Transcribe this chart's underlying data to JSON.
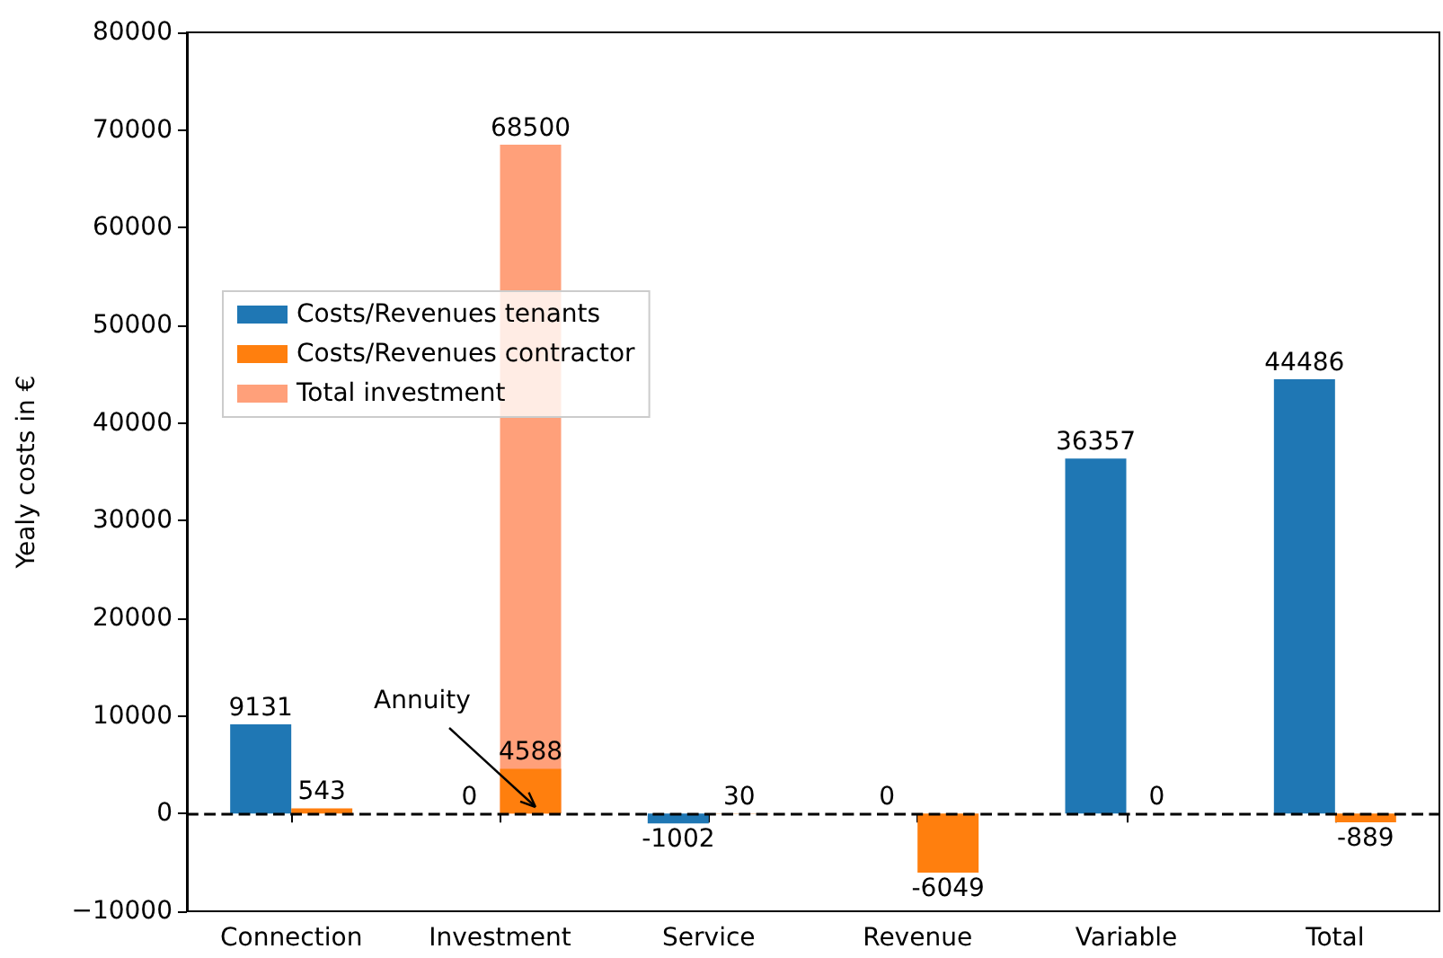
{
  "chart_data": {
    "type": "bar",
    "ylabel": "Yealy costs in €",
    "categories": [
      "Connection",
      "Investment",
      "Service",
      "Revenue",
      "Variable",
      "Total"
    ],
    "series": [
      {
        "name": "Costs/Revenues tenants",
        "color": "#1f77b4",
        "values": [
          9131,
          0,
          -1002,
          0,
          36357,
          44486
        ]
      },
      {
        "name": "Costs/Revenues contractor",
        "color": "#ff7f0e",
        "values": [
          543,
          4588,
          30,
          -6049,
          0,
          -889
        ]
      },
      {
        "name": "Total investment",
        "color": "#ffa07a",
        "values": [
          null,
          68500,
          null,
          null,
          null,
          null
        ]
      }
    ],
    "ylim": [
      -10000,
      80000
    ],
    "yticks": [
      {
        "value": -10000,
        "label": "−10000"
      },
      0,
      10000,
      20000,
      30000,
      40000,
      50000,
      60000,
      70000,
      80000
    ],
    "ref_lines": [
      {
        "axis": "y",
        "value": 0,
        "color": "#000000",
        "line_style": "dashed"
      }
    ],
    "annotations": [
      "Annuity"
    ],
    "data_labels": true,
    "grid": false,
    "legend": "left"
  }
}
